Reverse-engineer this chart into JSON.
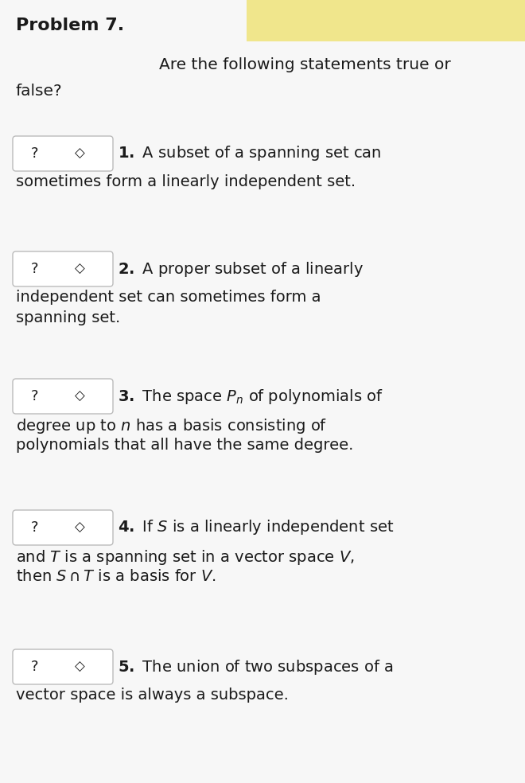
{
  "title": "Problem 7.",
  "bg_color": "#f7f7f7",
  "header_bg_color": "#f0e68c",
  "box_bg": "#ffffff",
  "box_border": "#bbbbbb",
  "text_color": "#1a1a1a",
  "item_y_positions": [
    175,
    320,
    480,
    645,
    820
  ],
  "item1_lines": [
    "**1.** A subset of a spanning set can",
    "sometimes form a linearly independent set."
  ],
  "item2_lines": [
    "**2.** A proper subset of a linearly",
    "independent set can sometimes form a",
    "spanning set."
  ],
  "item3_lines": [
    "**3.** The space $P_n$ of polynomials of",
    "degree up to $n$ has a basis consisting of",
    "polynomials that all have the same degree."
  ],
  "item4_lines": [
    "**4.** If $S$ is a linearly independent set",
    "and $T$ is a spanning set in a vector space $V$,",
    "then $S \\cap T$ is a basis for $V$."
  ],
  "item5_lines": [
    "**5.** The union of two subspaces of a",
    "vector space is always a subspace."
  ]
}
